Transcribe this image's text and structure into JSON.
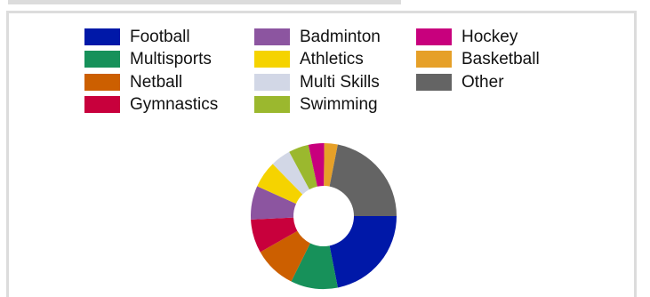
{
  "chart_data": {
    "type": "pie",
    "donut": true,
    "title": "",
    "legend_position": "top",
    "series": [
      {
        "name": "Football",
        "value": 22.0,
        "color": "#0018a8"
      },
      {
        "name": "Multisports",
        "value": 10.5,
        "color": "#17915a"
      },
      {
        "name": "Netball",
        "value": 9.5,
        "color": "#cc5f00"
      },
      {
        "name": "Gymnastics",
        "value": 7.5,
        "color": "#c8003c"
      },
      {
        "name": "Badminton",
        "value": 7.5,
        "color": "#8c55a0"
      },
      {
        "name": "Athletics",
        "value": 6.0,
        "color": "#f5d300"
      },
      {
        "name": "Multi Skills",
        "value": 4.5,
        "color": "#d2d7e6"
      },
      {
        "name": "Swimming",
        "value": 4.5,
        "color": "#9bb82e"
      },
      {
        "name": "Hockey",
        "value": 3.5,
        "color": "#c8007d"
      },
      {
        "name": "Basketball",
        "value": 3.0,
        "color": "#e6a028"
      },
      {
        "name": "Other",
        "value": 22.0,
        "color": "#646464"
      }
    ],
    "legend_order": [
      "Football",
      "Badminton",
      "Hockey",
      "Multisports",
      "Athletics",
      "Basketball",
      "Netball",
      "Multi Skills",
      "Other",
      "Gymnastics",
      "Swimming"
    ]
  }
}
